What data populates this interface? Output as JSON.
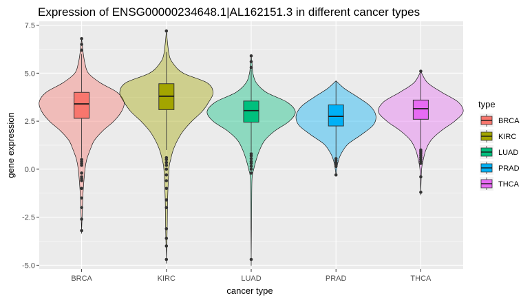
{
  "chart_data": {
    "type": "violin",
    "title": "Expression of ENSG00000234648.1|AL162151.3 in different cancer types",
    "xlabel": "cancer type",
    "ylabel": "gene expression",
    "ylim": [
      -5.2,
      7.7
    ],
    "yticks": [
      -5.0,
      -2.5,
      0.0,
      2.5,
      5.0,
      7.5
    ],
    "ytick_labels": [
      "-5.0",
      "-2.5",
      "0.0",
      "2.5",
      "5.0",
      "7.5"
    ],
    "grid": true,
    "legend_title": "type",
    "legend_position": "right",
    "categories": [
      "BRCA",
      "KIRC",
      "LUAD",
      "PRAD",
      "THCA"
    ],
    "series": [
      {
        "name": "BRCA",
        "color": "#F8766D",
        "q1": 2.65,
        "median": 3.4,
        "q3": 4.0,
        "whisker_low": 0.6,
        "whisker_high": 6.0,
        "max_width": 0.5,
        "profile": [
          [
            -3.2,
            0.0
          ],
          [
            -2.0,
            0.01
          ],
          [
            -1.0,
            0.02
          ],
          [
            0.0,
            0.04
          ],
          [
            0.5,
            0.06
          ],
          [
            1.0,
            0.1
          ],
          [
            1.5,
            0.15
          ],
          [
            2.0,
            0.25
          ],
          [
            2.5,
            0.38
          ],
          [
            3.0,
            0.47
          ],
          [
            3.5,
            0.5
          ],
          [
            4.0,
            0.42
          ],
          [
            4.5,
            0.22
          ],
          [
            5.0,
            0.08
          ],
          [
            5.5,
            0.04
          ],
          [
            6.0,
            0.02
          ],
          [
            6.8,
            0.0
          ]
        ],
        "outliers": [
          6.8,
          6.5,
          6.2,
          0.5,
          0.4,
          0.3,
          0.2,
          -0.2,
          -0.4,
          -0.5,
          -0.6,
          -1.0,
          -1.5,
          -2.0,
          -2.6,
          -3.2
        ]
      },
      {
        "name": "KIRC",
        "color": "#A3A500",
        "q1": 3.1,
        "median": 3.8,
        "q3": 4.45,
        "whisker_low": 1.0,
        "whisker_high": 6.1,
        "max_width": 0.55,
        "profile": [
          [
            -4.7,
            0.0
          ],
          [
            -3.0,
            0.01
          ],
          [
            -1.5,
            0.015
          ],
          [
            0.0,
            0.03
          ],
          [
            0.5,
            0.05
          ],
          [
            1.0,
            0.08
          ],
          [
            1.5,
            0.13
          ],
          [
            2.0,
            0.2
          ],
          [
            2.5,
            0.3
          ],
          [
            3.0,
            0.42
          ],
          [
            3.5,
            0.5
          ],
          [
            4.0,
            0.55
          ],
          [
            4.5,
            0.48
          ],
          [
            5.0,
            0.2
          ],
          [
            5.5,
            0.08
          ],
          [
            6.0,
            0.03
          ],
          [
            7.2,
            0.0
          ]
        ],
        "outliers": [
          7.2,
          0.6,
          0.5,
          0.35,
          0.2,
          0.0,
          -0.3,
          -0.6,
          -1.0,
          -1.6,
          -2.0,
          -3.1,
          -3.6,
          -4.0,
          -4.7
        ]
      },
      {
        "name": "LUAD",
        "color": "#00BF7D",
        "q1": 2.45,
        "median": 3.05,
        "q3": 3.55,
        "whisker_low": 0.9,
        "whisker_high": 5.2,
        "max_width": 0.52,
        "profile": [
          [
            -4.7,
            0.0
          ],
          [
            -2.0,
            0.005
          ],
          [
            -0.5,
            0.01
          ],
          [
            0.0,
            0.03
          ],
          [
            0.5,
            0.06
          ],
          [
            1.0,
            0.1
          ],
          [
            1.5,
            0.16
          ],
          [
            2.0,
            0.28
          ],
          [
            2.5,
            0.45
          ],
          [
            3.0,
            0.52
          ],
          [
            3.5,
            0.42
          ],
          [
            4.0,
            0.18
          ],
          [
            4.5,
            0.06
          ],
          [
            5.0,
            0.02
          ],
          [
            5.5,
            0.01
          ],
          [
            5.9,
            0.0
          ]
        ],
        "outliers": [
          5.9,
          5.6,
          5.3,
          0.8,
          0.7,
          0.55,
          0.4,
          0.3,
          0.15,
          0.0,
          -0.2,
          -4.7
        ]
      },
      {
        "name": "PRAD",
        "color": "#00B0F6",
        "q1": 2.25,
        "median": 2.75,
        "q3": 3.35,
        "whisker_low": 0.6,
        "whisker_high": 4.6,
        "max_width": 0.47,
        "profile": [
          [
            -0.3,
            0.0
          ],
          [
            0.3,
            0.02
          ],
          [
            0.8,
            0.06
          ],
          [
            1.3,
            0.14
          ],
          [
            1.8,
            0.3
          ],
          [
            2.3,
            0.44
          ],
          [
            2.8,
            0.47
          ],
          [
            3.3,
            0.4
          ],
          [
            3.8,
            0.24
          ],
          [
            4.2,
            0.1
          ],
          [
            4.6,
            0.0
          ]
        ],
        "outliers": [
          0.55,
          0.45,
          0.35,
          0.25,
          0.15,
          -0.3
        ]
      },
      {
        "name": "THCA",
        "color": "#E76BF3",
        "q1": 2.6,
        "median": 3.15,
        "q3": 3.6,
        "whisker_low": 1.0,
        "whisker_high": 5.0,
        "max_width": 0.5,
        "profile": [
          [
            -1.2,
            0.0
          ],
          [
            0.0,
            0.01
          ],
          [
            0.5,
            0.03
          ],
          [
            1.0,
            0.06
          ],
          [
            1.5,
            0.12
          ],
          [
            2.0,
            0.24
          ],
          [
            2.5,
            0.4
          ],
          [
            3.0,
            0.5
          ],
          [
            3.5,
            0.44
          ],
          [
            4.0,
            0.25
          ],
          [
            4.5,
            0.08
          ],
          [
            5.1,
            0.0
          ]
        ],
        "outliers": [
          5.1,
          1.0,
          0.9,
          0.8,
          0.7,
          0.6,
          0.5,
          0.4,
          0.3,
          -0.4,
          -1.2
        ]
      }
    ]
  }
}
